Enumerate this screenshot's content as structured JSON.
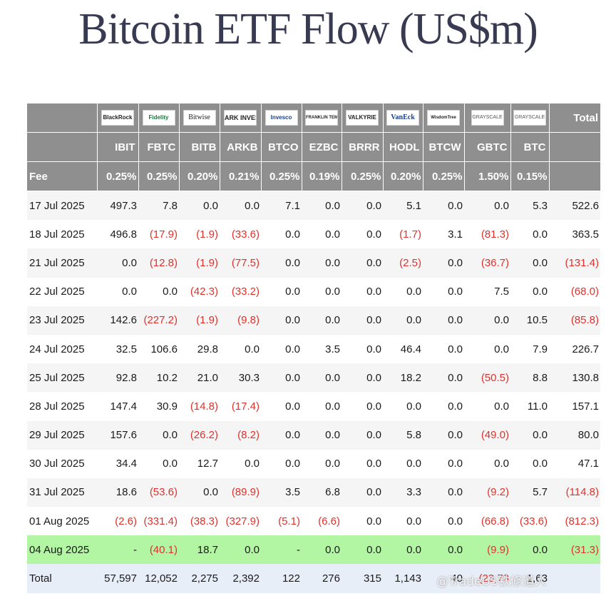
{
  "title": "Bitcoin ETF Flow (US$m)",
  "header": {
    "logos": [
      "BlackRock",
      "Fidelity",
      "Bitwise",
      "ARK INVEST",
      "Invesco",
      "FRANKLIN TEMPLETON",
      "VALKYRIE",
      "VanEck",
      "WisdomTree",
      "GRAYSCALE",
      "GRAYSCALE"
    ],
    "total_label": "Total",
    "tickers": [
      "IBIT",
      "FBTC",
      "BITB",
      "ARKB",
      "BTCO",
      "EZBC",
      "BRRR",
      "HODL",
      "BTCW",
      "GBTC",
      "BTC"
    ],
    "fee_label": "Fee",
    "fees": [
      "0.25%",
      "0.25%",
      "0.20%",
      "0.21%",
      "0.25%",
      "0.19%",
      "0.25%",
      "0.20%",
      "0.25%",
      "1.50%",
      "0.15%"
    ]
  },
  "rows": [
    {
      "date": "17 Jul 2025",
      "values": [
        "497.3",
        "7.8",
        "0.0",
        "0.0",
        "7.1",
        "0.0",
        "0.0",
        "5.1",
        "0.0",
        "0.0",
        "5.3"
      ],
      "total": "522.6"
    },
    {
      "date": "18 Jul 2025",
      "values": [
        "496.8",
        "(17.9)",
        "(1.9)",
        "(33.6)",
        "0.0",
        "0.0",
        "0.0",
        "(1.7)",
        "3.1",
        "(81.3)",
        "0.0"
      ],
      "total": "363.5"
    },
    {
      "date": "21 Jul 2025",
      "values": [
        "0.0",
        "(12.8)",
        "(1.9)",
        "(77.5)",
        "0.0",
        "0.0",
        "0.0",
        "(2.5)",
        "0.0",
        "(36.7)",
        "0.0"
      ],
      "total": "(131.4)"
    },
    {
      "date": "22 Jul 2025",
      "values": [
        "0.0",
        "0.0",
        "(42.3)",
        "(33.2)",
        "0.0",
        "0.0",
        "0.0",
        "0.0",
        "0.0",
        "7.5",
        "0.0"
      ],
      "total": "(68.0)"
    },
    {
      "date": "23 Jul 2025",
      "values": [
        "142.6",
        "(227.2)",
        "(1.9)",
        "(9.8)",
        "0.0",
        "0.0",
        "0.0",
        "0.0",
        "0.0",
        "0.0",
        "10.5"
      ],
      "total": "(85.8)"
    },
    {
      "date": "24 Jul 2025",
      "values": [
        "32.5",
        "106.6",
        "29.8",
        "0.0",
        "0.0",
        "3.5",
        "0.0",
        "46.4",
        "0.0",
        "0.0",
        "7.9"
      ],
      "total": "226.7"
    },
    {
      "date": "25 Jul 2025",
      "values": [
        "92.8",
        "10.2",
        "21.0",
        "30.3",
        "0.0",
        "0.0",
        "0.0",
        "18.2",
        "0.0",
        "(50.5)",
        "8.8"
      ],
      "total": "130.8"
    },
    {
      "date": "28 Jul 2025",
      "values": [
        "147.4",
        "30.9",
        "(14.8)",
        "(17.4)",
        "0.0",
        "0.0",
        "0.0",
        "0.0",
        "0.0",
        "0.0",
        "11.0"
      ],
      "total": "157.1"
    },
    {
      "date": "29 Jul 2025",
      "values": [
        "157.6",
        "0.0",
        "(26.2)",
        "(8.2)",
        "0.0",
        "0.0",
        "0.0",
        "5.8",
        "0.0",
        "(49.0)",
        "0.0"
      ],
      "total": "80.0"
    },
    {
      "date": "30 Jul 2025",
      "values": [
        "34.4",
        "0.0",
        "12.7",
        "0.0",
        "0.0",
        "0.0",
        "0.0",
        "0.0",
        "0.0",
        "0.0",
        "0.0"
      ],
      "total": "47.1"
    },
    {
      "date": "31 Jul 2025",
      "values": [
        "18.6",
        "(53.6)",
        "0.0",
        "(89.9)",
        "3.5",
        "6.8",
        "0.0",
        "3.3",
        "0.0",
        "(9.2)",
        "5.7"
      ],
      "total": "(114.8)"
    },
    {
      "date": "01 Aug 2025",
      "values": [
        "(2.6)",
        "(331.4)",
        "(38.3)",
        "(327.9)",
        "(5.1)",
        "(6.6)",
        "0.0",
        "0.0",
        "0.0",
        "(66.8)",
        "(33.6)"
      ],
      "total": "(812.3)"
    },
    {
      "date": "04 Aug 2025",
      "values": [
        "-",
        "(40.1)",
        "18.7",
        "0.0",
        "-",
        "0.0",
        "0.0",
        "0.0",
        "0.0",
        "(9.9)",
        "0.0"
      ],
      "total": "(31.3)",
      "highlight": true
    },
    {
      "date": "Total",
      "values": [
        "57,597",
        "12,052",
        "2,275",
        "2,392",
        "122",
        "276",
        "315",
        "1,143",
        "40",
        "(23,73",
        "1,63"
      ],
      "total": "",
      "total_row": true
    }
  ],
  "watermark": "@TradeUS铁修道人",
  "colors": {
    "header_bg": "#8f8f8f",
    "negative": "#e0322d",
    "highlight_row": "#b2f5a2",
    "title": "#383a52"
  }
}
